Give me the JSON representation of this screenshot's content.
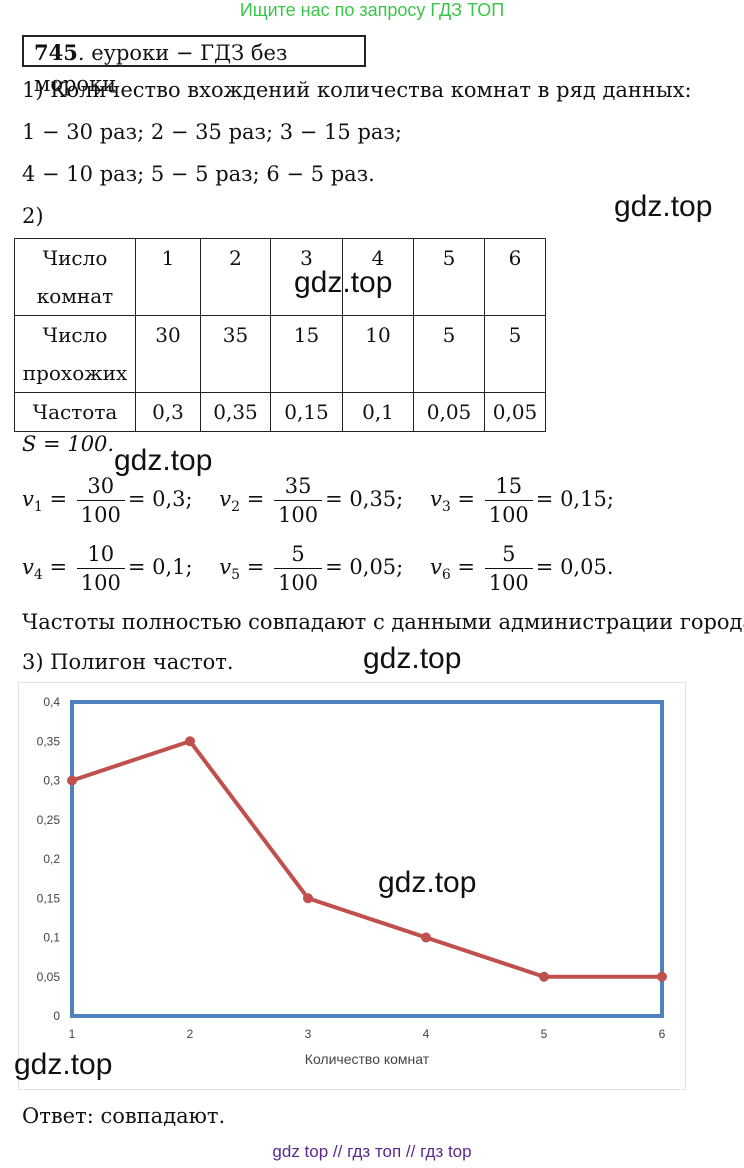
{
  "banner": "Ищите нас по запросу ГДЗ ТОП",
  "header": {
    "number": "745",
    "rest": ". еуроки  −  ГДЗ без мороки"
  },
  "part1": {
    "title": "1) Количество вхождений количества комнат в ряд данных:",
    "line1": "1 − 30 раз;    2 − 35 раз;    3 − 15 раз;",
    "line2": "4 − 10 раз;    5 − 5 раз;    6 − 5 раз."
  },
  "part2": {
    "title": "2)"
  },
  "table": {
    "row1_label": [
      "Число",
      "комнат"
    ],
    "row2_label": [
      "Число",
      "прохожих"
    ],
    "row3_label": "Частота",
    "rooms": [
      "1",
      "2",
      "3",
      "4",
      "5",
      "6"
    ],
    "counts": [
      "30",
      "35",
      "15",
      "10",
      "5",
      "5"
    ],
    "freqs": [
      "0,3",
      "0,35",
      "0,15",
      "0,1",
      "0,05",
      "0,05"
    ]
  },
  "sum_line": "S = 100.",
  "fractions": [
    {
      "label": "1",
      "num": "30",
      "den": "100",
      "result": "= 0,3;"
    },
    {
      "label": "2",
      "num": "35",
      "den": "100",
      "result": "= 0,35;"
    },
    {
      "label": "3",
      "num": "15",
      "den": "100",
      "result": "= 0,15;"
    },
    {
      "label": "4",
      "num": "10",
      "den": "100",
      "result": "= 0,1;"
    },
    {
      "label": "5",
      "num": "5",
      "den": "100",
      "result": "= 0,05;"
    },
    {
      "label": "6",
      "num": "5",
      "den": "100",
      "result": "= 0,05."
    }
  ],
  "conclusion": "Частоты полностью совпадают с данными администрации города.",
  "part3": {
    "title": "3) Полигон частот."
  },
  "watermark": "gdz.top",
  "chart_data": {
    "type": "line",
    "x": [
      1,
      2,
      3,
      4,
      5,
      6
    ],
    "values": [
      0.3,
      0.35,
      0.15,
      0.1,
      0.05,
      0.05
    ],
    "xlabel": "Количество комнат",
    "ylabel": "",
    "ylim": [
      0,
      0.4
    ],
    "xlim": [
      1,
      6
    ],
    "y_ticks": [
      "0",
      "0,05",
      "0,1",
      "0,15",
      "0,2",
      "0,25",
      "0,3",
      "0,35",
      "0,4"
    ],
    "x_ticks": [
      "1",
      "2",
      "3",
      "4",
      "5",
      "6"
    ],
    "line_color": "#c0504d",
    "frame_color": "#4f81bd",
    "grid": false
  },
  "answer": "Ответ: совпадают.",
  "footer": "gdz top  //  гдз топ  //  гдз top"
}
